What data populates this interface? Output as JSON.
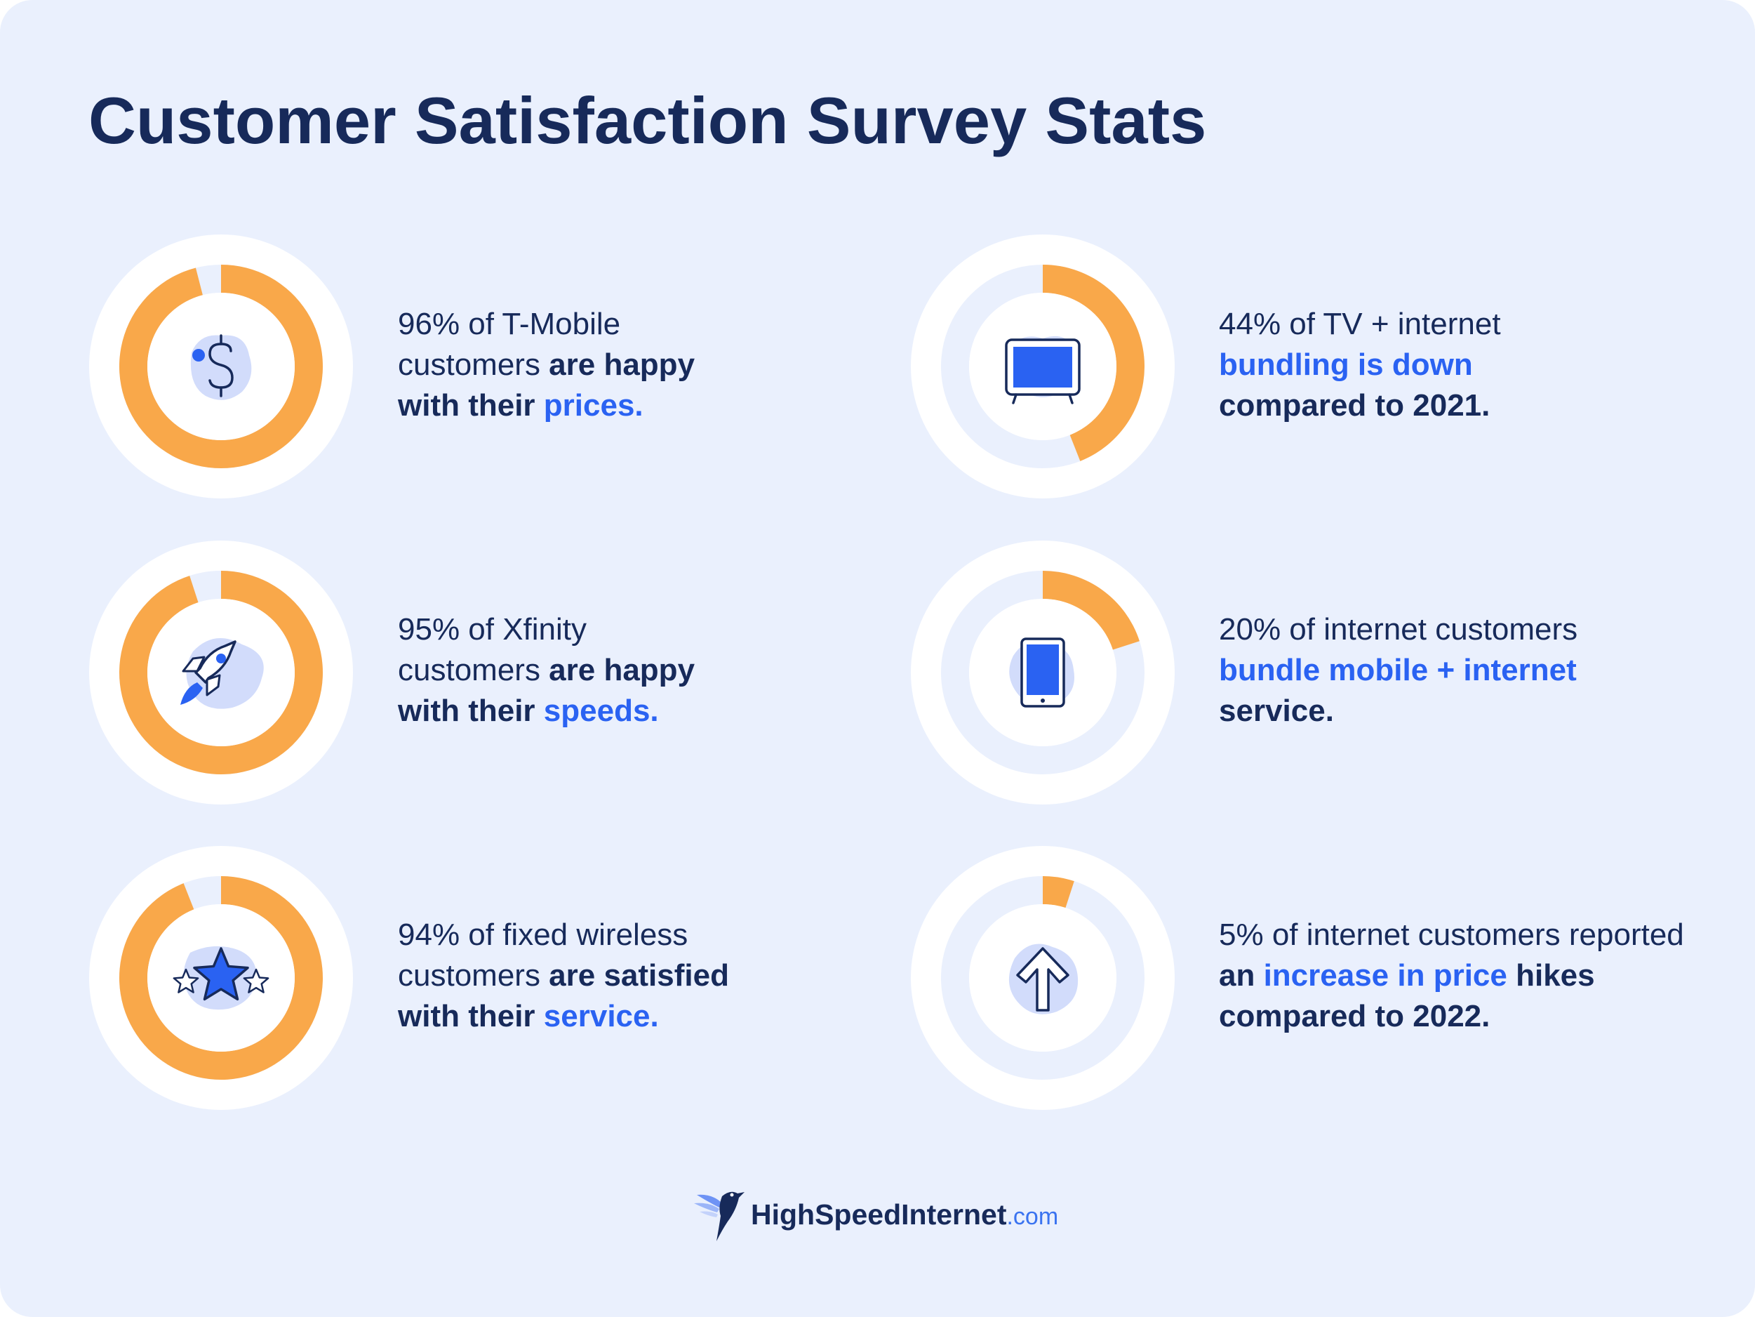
{
  "title": "Customer Satisfaction Survey Stats",
  "colors": {
    "ring_fill": "#f9a84a",
    "ring_track": "#eaf0fd",
    "ring_outer": "#ffffff",
    "navy": "#172a5a",
    "accent_blue": "#2a62f2",
    "blob": "#d2dcfb"
  },
  "chart_data": {
    "type": "pie",
    "series": [
      {
        "value": 96,
        "icon": "dollar-sign-icon",
        "lines": [
          [
            {
              "t": "96% of T-Mobile",
              "s": "n"
            }
          ],
          [
            {
              "t": "customers ",
              "s": "n"
            },
            {
              "t": "are happy",
              "s": "b"
            }
          ],
          [
            {
              "t": "with their ",
              "s": "b"
            },
            {
              "t": "prices.",
              "s": "hl"
            }
          ]
        ]
      },
      {
        "value": 44,
        "icon": "tv-icon",
        "lines": [
          [
            {
              "t": "44% of TV + internet",
              "s": "n"
            }
          ],
          [
            {
              "t": "bundling is down",
              "s": "hl"
            }
          ],
          [
            {
              "t": "compared to 2021.",
              "s": "b"
            }
          ]
        ]
      },
      {
        "value": 95,
        "icon": "rocket-icon",
        "lines": [
          [
            {
              "t": "95% of Xfinity",
              "s": "n"
            }
          ],
          [
            {
              "t": "customers ",
              "s": "n"
            },
            {
              "t": "are happy",
              "s": "b"
            }
          ],
          [
            {
              "t": "with their ",
              "s": "b"
            },
            {
              "t": "speeds.",
              "s": "hl"
            }
          ]
        ]
      },
      {
        "value": 20,
        "icon": "tablet-icon",
        "lines": [
          [
            {
              "t": "20% of internet customers",
              "s": "n"
            }
          ],
          [
            {
              "t": "bundle mobile + internet",
              "s": "hl"
            }
          ],
          [
            {
              "t": "service.",
              "s": "b"
            }
          ]
        ]
      },
      {
        "value": 94,
        "icon": "stars-icon",
        "lines": [
          [
            {
              "t": "94% of fixed wireless",
              "s": "n"
            }
          ],
          [
            {
              "t": "customers ",
              "s": "n"
            },
            {
              "t": "are satisfied",
              "s": "b"
            }
          ],
          [
            {
              "t": "with their ",
              "s": "b"
            },
            {
              "t": "service.",
              "s": "hl"
            }
          ]
        ]
      },
      {
        "value": 5,
        "icon": "arrow-up-icon",
        "lines": [
          [
            {
              "t": "5% of internet customers reported",
              "s": "n"
            }
          ],
          [
            {
              "t": "an ",
              "s": "b"
            },
            {
              "t": "increase in price",
              "s": "hl"
            },
            {
              "t": " hikes",
              "s": "b"
            }
          ],
          [
            {
              "t": "compared to 2022.",
              "s": "b"
            }
          ]
        ]
      }
    ]
  },
  "logo": {
    "name": "HighSpeedInternet",
    "suffix": ".com",
    "icon": "hummingbird-icon"
  }
}
